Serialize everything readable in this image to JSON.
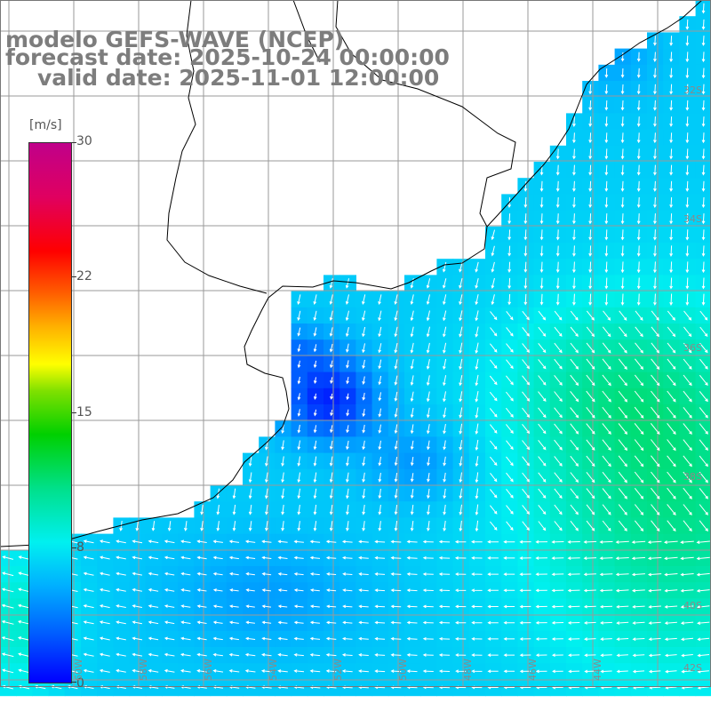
{
  "titles": {
    "model": "modelo GEFS-WAVE (NCEP)",
    "forecast": "forecast date: 2025-10-24 00:00:00",
    "valid": "valid date: 2025-11-01 12:00:00"
  },
  "colorbar": {
    "unit": "[m/s]",
    "ticks": [
      {
        "value": 30,
        "label": "30"
      },
      {
        "value": 22,
        "label": "22"
      },
      {
        "value": 15,
        "label": "15"
      },
      {
        "value": 8,
        "label": "8"
      },
      {
        "value": 0,
        "label": "0"
      }
    ]
  },
  "map": {
    "grid": {
      "lon_range": [
        -62,
        -41
      ],
      "lat_range": [
        -43,
        -22
      ],
      "step_deg": 2
    },
    "lat_labels": [
      "32S",
      "34S",
      "36S",
      "38S",
      "40S",
      "42S"
    ],
    "lon_labels": [
      "60W",
      "58W",
      "56W",
      "54W",
      "52W",
      "50W",
      "48W",
      "46W",
      "44W"
    ],
    "colors": {
      "land": "#ffffff",
      "gridline": "#9a9a9a",
      "coastline": "#000000",
      "arrow": "#ffffff"
    }
  }
}
